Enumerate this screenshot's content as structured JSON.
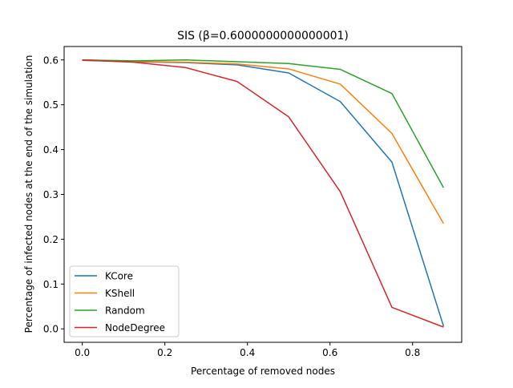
{
  "chart_data": {
    "type": "line",
    "title": "SIS (β=0.6000000000000001)",
    "xlabel": "Percentage of removed nodes",
    "ylabel": "Percentage of infected nodes at the end of the simulation",
    "xlim": [
      -0.044,
      0.919
    ],
    "ylim": [
      -0.03,
      0.63
    ],
    "xticks": [
      0.0,
      0.2,
      0.4,
      0.6,
      0.8
    ],
    "xtick_labels": [
      "0.0",
      "0.2",
      "0.4",
      "0.6",
      "0.8"
    ],
    "yticks": [
      0.0,
      0.1,
      0.2,
      0.3,
      0.4,
      0.5,
      0.6
    ],
    "ytick_labels": [
      "0.0",
      "0.1",
      "0.2",
      "0.3",
      "0.4",
      "0.5",
      "0.6"
    ],
    "grid": false,
    "legend_position": "lower-left",
    "x": [
      0.0,
      0.125,
      0.25,
      0.375,
      0.5,
      0.625,
      0.75,
      0.875
    ],
    "series": [
      {
        "name": "KCore",
        "color": "#1f77b4",
        "values": [
          0.599,
          0.596,
          0.594,
          0.589,
          0.571,
          0.507,
          0.372,
          0.006
        ]
      },
      {
        "name": "KShell",
        "color": "#ff7f0e",
        "values": [
          0.6,
          0.597,
          0.595,
          0.591,
          0.58,
          0.546,
          0.436,
          0.235
        ]
      },
      {
        "name": "Random",
        "color": "#2ca02c",
        "values": [
          0.6,
          0.598,
          0.6,
          0.596,
          0.592,
          0.579,
          0.525,
          0.315
        ]
      },
      {
        "name": "NodeDegree",
        "color": "#d62728",
        "values": [
          0.6,
          0.595,
          0.583,
          0.552,
          0.473,
          0.306,
          0.048,
          0.004
        ]
      }
    ]
  }
}
